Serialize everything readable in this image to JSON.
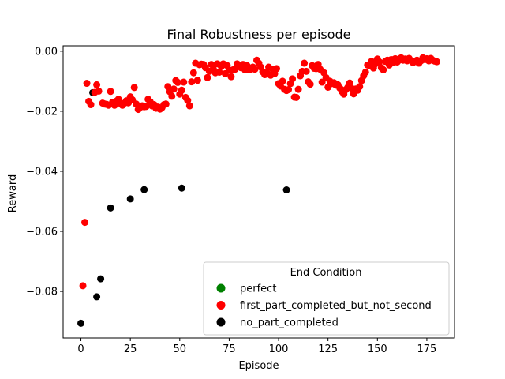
{
  "chart_data": {
    "type": "scatter",
    "title": "Final Robustness per episode",
    "xlabel": "Episode",
    "ylabel": "Reward",
    "xlim": [
      -9,
      189
    ],
    "ylim": [
      -0.0955,
      0.0018
    ],
    "xticks": [
      0,
      25,
      50,
      75,
      100,
      125,
      150,
      175
    ],
    "yticks": [
      -0.08,
      -0.06,
      -0.04,
      -0.02,
      0.0
    ],
    "ytick_labels": [
      "−0.08",
      "−0.06",
      "−0.04",
      "−0.02",
      "0.00"
    ],
    "grid": false,
    "legend": {
      "title": "End Condition",
      "placement": "lower-right",
      "entries": [
        {
          "label": "perfect",
          "color": "#008000"
        },
        {
          "label": "first_part_completed_but_not_second",
          "color": "#ff0000"
        },
        {
          "label": "no_part_completed",
          "color": "#000000"
        }
      ]
    },
    "series": [
      {
        "name": "no_part_completed",
        "color": "#000000",
        "points": [
          [
            0,
            -0.0906
          ],
          [
            6,
            -0.0138
          ],
          [
            8,
            -0.0818
          ],
          [
            10,
            -0.0758
          ],
          [
            15,
            -0.0522
          ],
          [
            25,
            -0.0492
          ],
          [
            32,
            -0.0461
          ],
          [
            51,
            -0.0456
          ],
          [
            104,
            -0.0462
          ]
        ]
      },
      {
        "name": "first_part_completed_but_not_second",
        "color": "#ff0000",
        "points": [
          [
            1,
            -0.0781
          ],
          [
            2,
            -0.057
          ],
          [
            3,
            -0.0107
          ],
          [
            4,
            -0.0167
          ],
          [
            5,
            -0.0178
          ],
          [
            7,
            -0.0137
          ],
          [
            8,
            -0.0112
          ],
          [
            9,
            -0.0133
          ],
          [
            11,
            -0.0173
          ],
          [
            12,
            -0.0176
          ],
          [
            13,
            -0.0177
          ],
          [
            14,
            -0.018
          ],
          [
            15,
            -0.0134
          ],
          [
            16,
            -0.017
          ],
          [
            17,
            -0.018
          ],
          [
            18,
            -0.0166
          ],
          [
            19,
            -0.016
          ],
          [
            20,
            -0.0174
          ],
          [
            21,
            -0.018
          ],
          [
            22,
            -0.0173
          ],
          [
            23,
            -0.0165
          ],
          [
            24,
            -0.0172
          ],
          [
            25,
            -0.0152
          ],
          [
            26,
            -0.0162
          ],
          [
            27,
            -0.0121
          ],
          [
            28,
            -0.0176
          ],
          [
            29,
            -0.0194
          ],
          [
            30,
            -0.0187
          ],
          [
            31,
            -0.0182
          ],
          [
            32,
            -0.0185
          ],
          [
            33,
            -0.0184
          ],
          [
            34,
            -0.016
          ],
          [
            35,
            -0.0168
          ],
          [
            36,
            -0.0182
          ],
          [
            37,
            -0.0178
          ],
          [
            38,
            -0.019
          ],
          [
            39,
            -0.0186
          ],
          [
            40,
            -0.0193
          ],
          [
            41,
            -0.0188
          ],
          [
            42,
            -0.0178
          ],
          [
            43,
            -0.0176
          ],
          [
            44,
            -0.0118
          ],
          [
            45,
            -0.0135
          ],
          [
            46,
            -0.015
          ],
          [
            47,
            -0.0126
          ],
          [
            48,
            -0.0098
          ],
          [
            49,
            -0.0104
          ],
          [
            50,
            -0.0143
          ],
          [
            51,
            -0.013
          ],
          [
            52,
            -0.0103
          ],
          [
            53,
            -0.0154
          ],
          [
            54,
            -0.0164
          ],
          [
            55,
            -0.0182
          ],
          [
            56,
            -0.0102
          ],
          [
            57,
            -0.0072
          ],
          [
            58,
            -0.004
          ],
          [
            59,
            -0.0097
          ],
          [
            60,
            -0.0045
          ],
          [
            61,
            -0.0043
          ],
          [
            62,
            -0.0044
          ],
          [
            63,
            -0.0055
          ],
          [
            64,
            -0.0088
          ],
          [
            65,
            -0.0067
          ],
          [
            66,
            -0.0044
          ],
          [
            67,
            -0.006
          ],
          [
            68,
            -0.0072
          ],
          [
            69,
            -0.0042
          ],
          [
            70,
            -0.007
          ],
          [
            71,
            -0.0051
          ],
          [
            72,
            -0.0042
          ],
          [
            73,
            -0.0075
          ],
          [
            74,
            -0.0048
          ],
          [
            75,
            -0.0063
          ],
          [
            76,
            -0.0085
          ],
          [
            77,
            -0.0062
          ],
          [
            78,
            -0.006
          ],
          [
            79,
            -0.0042
          ],
          [
            80,
            -0.005
          ],
          [
            81,
            -0.0055
          ],
          [
            82,
            -0.0044
          ],
          [
            83,
            -0.0062
          ],
          [
            84,
            -0.0048
          ],
          [
            85,
            -0.0061
          ],
          [
            86,
            -0.006
          ],
          [
            87,
            -0.0053
          ],
          [
            88,
            -0.006
          ],
          [
            89,
            -0.003
          ],
          [
            90,
            -0.004
          ],
          [
            91,
            -0.0053
          ],
          [
            92,
            -0.0069
          ],
          [
            93,
            -0.0078
          ],
          [
            94,
            -0.0072
          ],
          [
            95,
            -0.0053
          ],
          [
            96,
            -0.008
          ],
          [
            97,
            -0.006
          ],
          [
            98,
            -0.0075
          ],
          [
            99,
            -0.0058
          ],
          [
            100,
            -0.0108
          ],
          [
            101,
            -0.0116
          ],
          [
            102,
            -0.01
          ],
          [
            103,
            -0.0127
          ],
          [
            104,
            -0.0131
          ],
          [
            105,
            -0.0128
          ],
          [
            106,
            -0.0108
          ],
          [
            107,
            -0.0092
          ],
          [
            108,
            -0.0153
          ],
          [
            109,
            -0.0154
          ],
          [
            110,
            -0.0127
          ],
          [
            111,
            -0.0082
          ],
          [
            112,
            -0.0067
          ],
          [
            113,
            -0.004
          ],
          [
            114,
            -0.0067
          ],
          [
            115,
            -0.0102
          ],
          [
            116,
            -0.011
          ],
          [
            117,
            -0.0048
          ],
          [
            118,
            -0.0057
          ],
          [
            119,
            -0.0058
          ],
          [
            120,
            -0.0044
          ],
          [
            121,
            -0.006
          ],
          [
            122,
            -0.0103
          ],
          [
            123,
            -0.0072
          ],
          [
            124,
            -0.0088
          ],
          [
            125,
            -0.012
          ],
          [
            126,
            -0.01
          ],
          [
            127,
            -0.0108
          ],
          [
            128,
            -0.0105
          ],
          [
            129,
            -0.0113
          ],
          [
            130,
            -0.0112
          ],
          [
            131,
            -0.0123
          ],
          [
            132,
            -0.0134
          ],
          [
            133,
            -0.0143
          ],
          [
            134,
            -0.0128
          ],
          [
            135,
            -0.0121
          ],
          [
            136,
            -0.0106
          ],
          [
            137,
            -0.0124
          ],
          [
            138,
            -0.0142
          ],
          [
            139,
            -0.0126
          ],
          [
            140,
            -0.013
          ],
          [
            141,
            -0.0118
          ],
          [
            142,
            -0.0098
          ],
          [
            143,
            -0.0082
          ],
          [
            144,
            -0.007
          ],
          [
            145,
            -0.0046
          ],
          [
            146,
            -0.0048
          ],
          [
            147,
            -0.0034
          ],
          [
            148,
            -0.0056
          ],
          [
            149,
            -0.0042
          ],
          [
            150,
            -0.0026
          ],
          [
            151,
            -0.0036
          ],
          [
            152,
            -0.0055
          ],
          [
            153,
            -0.0062
          ],
          [
            154,
            -0.0034
          ],
          [
            155,
            -0.003
          ],
          [
            156,
            -0.0046
          ],
          [
            157,
            -0.0028
          ],
          [
            158,
            -0.0038
          ],
          [
            159,
            -0.0025
          ],
          [
            160,
            -0.0036
          ],
          [
            161,
            -0.003
          ],
          [
            162,
            -0.0022
          ],
          [
            163,
            -0.003
          ],
          [
            164,
            -0.0026
          ],
          [
            165,
            -0.0032
          ],
          [
            166,
            -0.0024
          ],
          [
            167,
            -0.0031
          ],
          [
            168,
            -0.0038
          ],
          [
            169,
            -0.0034
          ],
          [
            170,
            -0.003
          ],
          [
            171,
            -0.004
          ],
          [
            172,
            -0.0032
          ],
          [
            173,
            -0.0022
          ],
          [
            174,
            -0.0028
          ],
          [
            175,
            -0.0025
          ],
          [
            176,
            -0.0032
          ],
          [
            177,
            -0.0024
          ],
          [
            178,
            -0.003
          ],
          [
            179,
            -0.0033
          ],
          [
            180,
            -0.0035
          ]
        ]
      },
      {
        "name": "perfect",
        "color": "#008000",
        "points": []
      }
    ]
  }
}
